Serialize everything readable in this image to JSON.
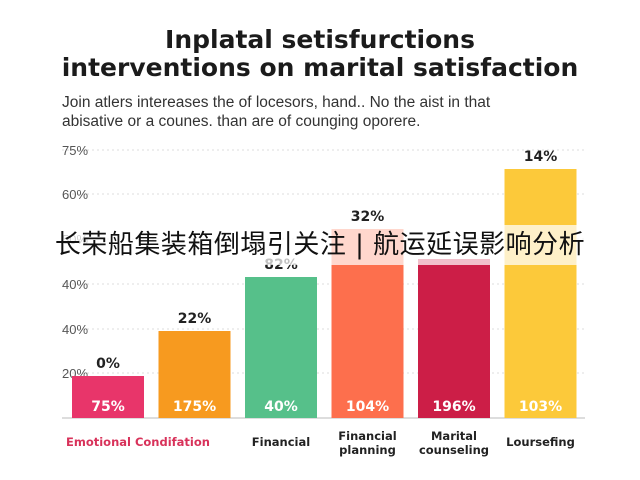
{
  "chart_data": {
    "type": "bar",
    "title_lines": [
      "Inplatal setisfurctions",
      "interventions on marital satisfaction"
    ],
    "subtitle_lines": [
      "Join atlers intereases the of locesors, hand.. No the aist in that",
      "abisative or a counes. than are of counging oporere."
    ],
    "y_ticks": [
      "75%",
      "60%",
      "50%",
      "40%",
      "40%",
      "20%"
    ],
    "categories": [
      {
        "lines": [
          "Emotional Condifation"
        ],
        "color": "#e8356a",
        "value": 14,
        "top_label": "0%",
        "bar_label": "75%"
      },
      {
        "lines": [
          "",
          ""
        ],
        "color": "#f79a1f",
        "value": 29,
        "top_label": "22%",
        "bar_label": "175%"
      },
      {
        "lines": [
          "Financial"
        ],
        "color": "#56c08a",
        "value": 47,
        "top_label": "82%",
        "bar_label": "40%"
      },
      {
        "lines": [
          "Financial",
          "planning"
        ],
        "color": "#fd6f4d",
        "value": 63,
        "top_label": "32%",
        "bar_label": "104%"
      },
      {
        "lines": [
          "Marital",
          "counseling"
        ],
        "color": "#cc1e47",
        "value": 53,
        "top_label": "",
        "bar_label": "196%"
      },
      {
        "lines": [
          "Loursefing"
        ],
        "color": "#fcc93a",
        "value": 83,
        "top_label": "14%",
        "bar_label": "103%"
      }
    ]
  },
  "banner": {
    "text": "长荣船集装箱倒塌引关注 | 航运延误影响分析"
  }
}
